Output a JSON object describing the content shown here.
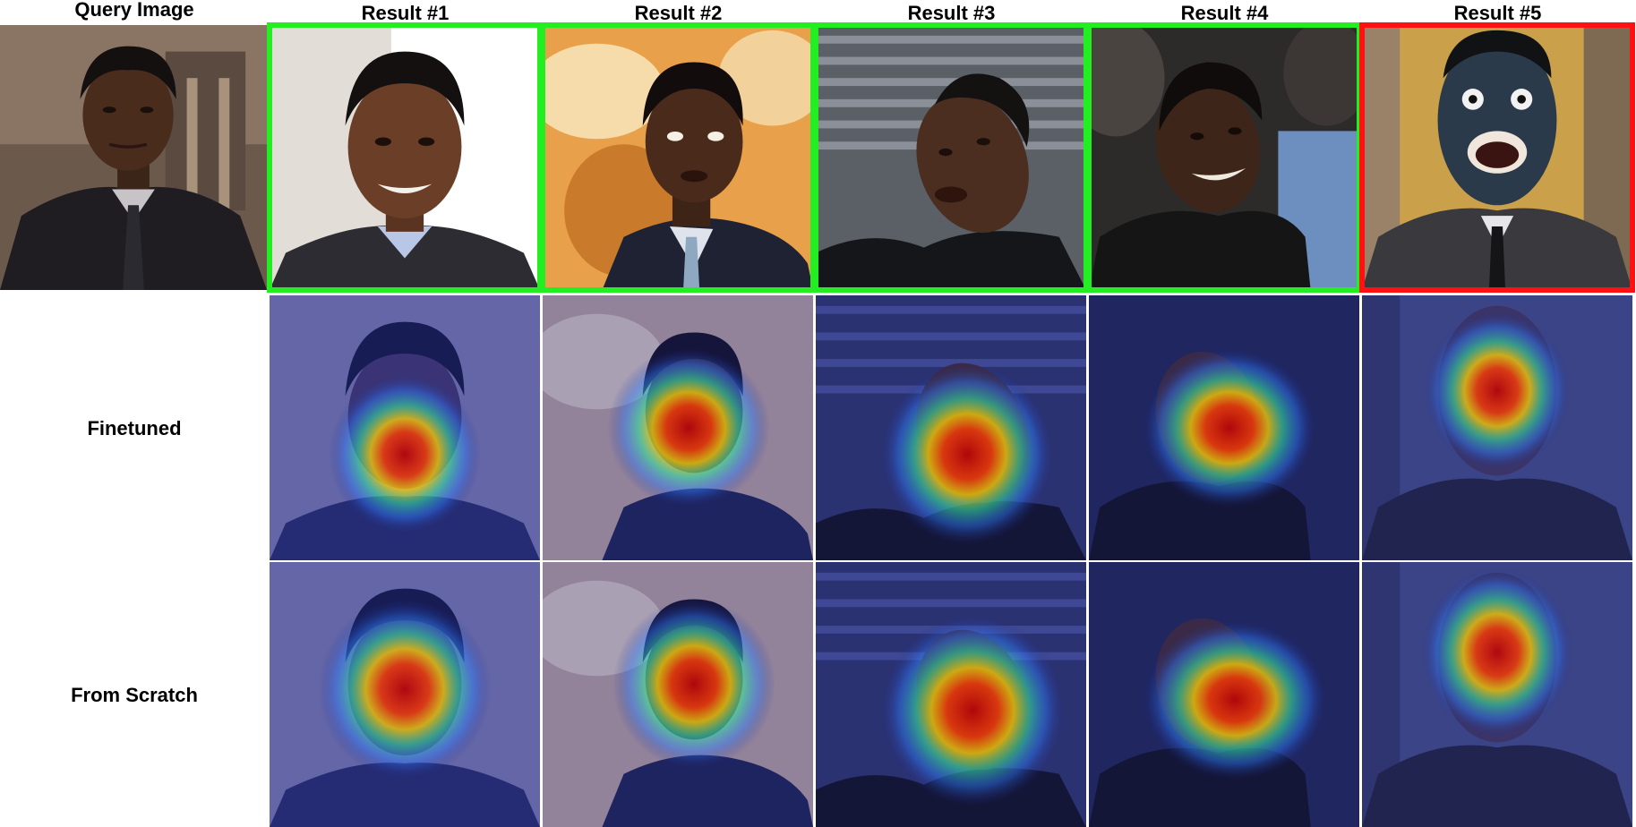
{
  "headers": {
    "query": "Query Image",
    "results": [
      "Result #1",
      "Result #2",
      "Result #3",
      "Result #4",
      "Result #5"
    ]
  },
  "row_labels": {
    "finetuned": "Finetuned",
    "scratch": "From Scratch"
  },
  "results": [
    {
      "correct": true,
      "scene": "white-studio",
      "bg": "#e9e4df",
      "pose": "frontal"
    },
    {
      "correct": true,
      "scene": "orange-artwork",
      "bg": "#e5a24a",
      "pose": "slight-right"
    },
    {
      "correct": true,
      "scene": "stadium-seats",
      "bg": "#3c3f44",
      "pose": "tilted"
    },
    {
      "correct": true,
      "scene": "crowd",
      "bg": "#34302d",
      "pose": "tilted-right"
    },
    {
      "correct": false,
      "scene": "doorway",
      "bg": "#c9a24c",
      "pose": "frontal-open-mouth"
    }
  ],
  "colors": {
    "correct_border": "#22ee22",
    "wrong_border": "#ff1111",
    "heatmap_tint": "#1e2a8c"
  }
}
